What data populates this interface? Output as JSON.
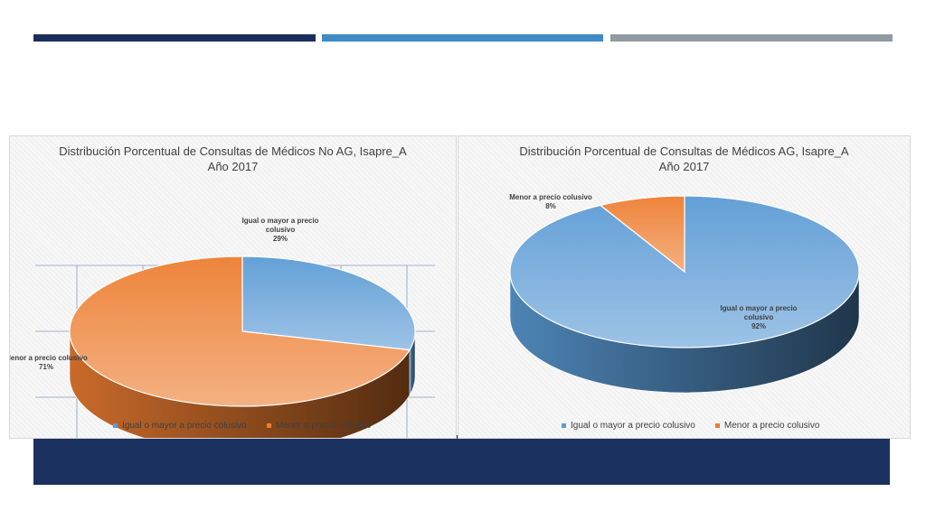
{
  "colors": {
    "stripe_dark": "#1b2f5e",
    "stripe_mid": "#3f8bc6",
    "stripe_grey": "#929aa1",
    "footer": "#1b3260",
    "series_blue": "#5b9bd5",
    "series_orange": "#ed7d31"
  },
  "chart_data": [
    {
      "type": "pie",
      "title": "Distribución Porcentual de Consultas de Médicos No AG, Isapre_A",
      "subtitle": "Año 2017",
      "legend_position": "bottom",
      "slices": [
        {
          "label": "Igual o mayor a precio colusivo",
          "value": 29,
          "pct_label": "29%",
          "color": "#5b9bd5"
        },
        {
          "label": "Menor a precio  colusivo",
          "value": 71,
          "pct_label": "71%",
          "color": "#ed7d31"
        }
      ]
    },
    {
      "type": "pie",
      "title": "Distribución Porcentual de Consultas de Médicos AG, Isapre_A",
      "subtitle": "Año 2017",
      "legend_position": "bottom",
      "slices": [
        {
          "label": "Igual o mayor a precio colusivo",
          "value": 92,
          "pct_label": "92%",
          "color": "#5b9bd5"
        },
        {
          "label": "Menor a precio  colusivo",
          "value": 8,
          "pct_label": "8%",
          "color": "#ed7d31"
        }
      ]
    }
  ]
}
